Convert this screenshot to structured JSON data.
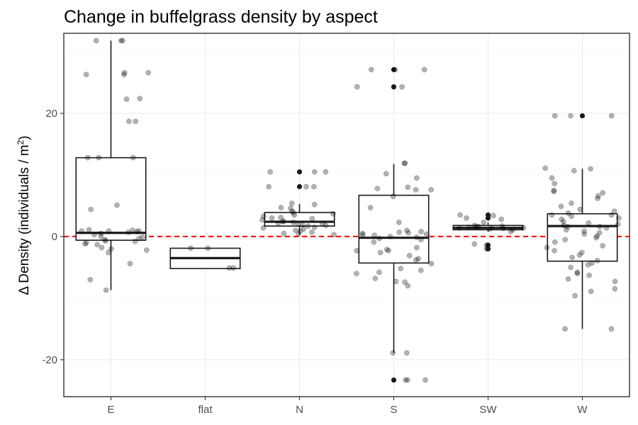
{
  "chart_data": {
    "type": "boxplot",
    "title": "Change in buffelgrass density by aspect",
    "xlabel": "",
    "ylabel": "Δ Density (individuals / m²)",
    "ylabel_parts": {
      "prefix": "Δ Density (individuals / m",
      "sup": "2",
      "suffix": ")"
    },
    "ylim": [
      -26,
      33
    ],
    "yticks": [
      -20,
      0,
      20
    ],
    "grid": true,
    "reference_line": {
      "y": 0,
      "color": "#ff0000",
      "style": "dashed"
    },
    "categories": [
      "E",
      "flat",
      "N",
      "S",
      "SW",
      "W"
    ],
    "boxes": [
      {
        "category": "E",
        "q1": -0.6,
        "median": 0.6,
        "q3": 12.8,
        "whisker_low": -8.7,
        "whisker_high": 31.8,
        "outliers": []
      },
      {
        "category": "flat",
        "q1": -5.2,
        "median": -3.5,
        "q3": -1.9,
        "whisker_low": -5.2,
        "whisker_high": -1.9,
        "outliers": []
      },
      {
        "category": "N",
        "q1": 1.7,
        "median": 2.4,
        "q3": 3.9,
        "whisker_low": 0.3,
        "whisker_high": 5.3,
        "outliers": [
          8.1,
          10.5
        ]
      },
      {
        "category": "S",
        "q1": -4.3,
        "median": -0.2,
        "q3": 6.7,
        "whisker_low": -18.9,
        "whisker_high": 11.8,
        "outliers": [
          -23.3,
          24.3,
          27.1
        ]
      },
      {
        "category": "SW",
        "q1": 1.1,
        "median": 1.4,
        "q3": 1.8,
        "whisker_low": 0.8,
        "whisker_high": 2.3,
        "outliers": [
          -2.0,
          -1.4,
          3.0,
          3.5
        ]
      },
      {
        "category": "W",
        "q1": -4.0,
        "median": 1.7,
        "q3": 3.7,
        "whisker_low": -15.0,
        "whisker_high": 11.0,
        "outliers": [
          19.6
        ]
      }
    ],
    "points": [
      {
        "category": "E",
        "values": [
          31.8,
          31.8,
          31.8,
          26.6,
          26.6,
          26.3,
          26.3,
          22.4,
          22.3,
          18.7,
          18.7,
          12.8,
          12.8,
          12.8,
          5.1,
          4.4,
          1.1,
          1.0,
          0.9,
          0.8,
          0.9,
          0.9,
          0.7,
          0.5,
          0.3,
          0.0,
          -0.1,
          -0.3,
          -0.5,
          -0.7,
          -0.8,
          -1.0,
          -1.2,
          -1.3,
          -1.8,
          -2.0,
          -2.2,
          -2.6,
          -4.4,
          -7.0,
          -8.7
        ]
      },
      {
        "category": "flat",
        "values": [
          -5.1,
          -5.1,
          -1.9,
          -1.9
        ]
      },
      {
        "category": "N",
        "values": [
          10.5,
          10.5,
          10.5,
          8.1,
          8.1,
          8.1,
          5.4,
          5.2,
          4.7,
          4.6,
          4.1,
          3.9,
          3.7,
          3.5,
          3.3,
          3.1,
          3.0,
          2.9,
          2.7,
          2.5,
          2.4,
          2.3,
          2.2,
          2.1,
          2.0,
          1.9,
          1.8,
          1.7,
          1.5,
          1.4,
          1.2,
          1.0,
          0.9,
          0.7,
          0.5,
          0.4,
          0.3
        ]
      },
      {
        "category": "S",
        "values": [
          27.1,
          27.1,
          27.1,
          24.3,
          24.3,
          11.9,
          11.9,
          10.2,
          9.5,
          8.0,
          7.8,
          7.6,
          7.6,
          6.5,
          4.7,
          2.3,
          1.0,
          0.8,
          0.7,
          0.6,
          0.5,
          0.4,
          0.3,
          0.2,
          0.0,
          -0.1,
          -0.3,
          -0.5,
          -0.9,
          -1.8,
          -2.1,
          -2.3,
          -2.3,
          -2.6,
          -3.1,
          -3.6,
          -3.8,
          -4.4,
          -5.2,
          -5.5,
          -5.8,
          -6.0,
          -6.8,
          -7.3,
          -7.4,
          -8.0,
          -18.9,
          -18.9,
          -23.3,
          -23.3,
          -23.3
        ]
      },
      {
        "category": "SW",
        "values": [
          3.5,
          3.4,
          3.0,
          2.8,
          2.3,
          1.8,
          1.7,
          1.6,
          1.6,
          1.5,
          1.5,
          1.4,
          1.4,
          1.4,
          1.3,
          1.2,
          1.1,
          0.8,
          -1.2,
          -1.4,
          -2.0
        ]
      },
      {
        "category": "W",
        "values": [
          19.6,
          19.6,
          19.6,
          11.1,
          11.0,
          10.7,
          9.5,
          8.6,
          7.5,
          7.3,
          7.1,
          6.6,
          6.2,
          5.4,
          4.9,
          4.4,
          4.1,
          3.8,
          3.5,
          3.5,
          3.3,
          3.0,
          2.8,
          2.4,
          2.2,
          2.0,
          1.8,
          1.6,
          1.6,
          1.4,
          1.1,
          0.9,
          0.6,
          0.4,
          0.1,
          -0.2,
          -0.5,
          -0.9,
          -1.5,
          -1.8,
          -2.3,
          -2.6,
          -3.0,
          -3.4,
          -3.9,
          -4.3,
          -4.6,
          -5.0,
          -5.8,
          -6.0,
          -6.3,
          -6.9,
          -7.3,
          -8.5,
          -8.9,
          -9.6,
          -15.0,
          -15.0
        ]
      }
    ]
  }
}
